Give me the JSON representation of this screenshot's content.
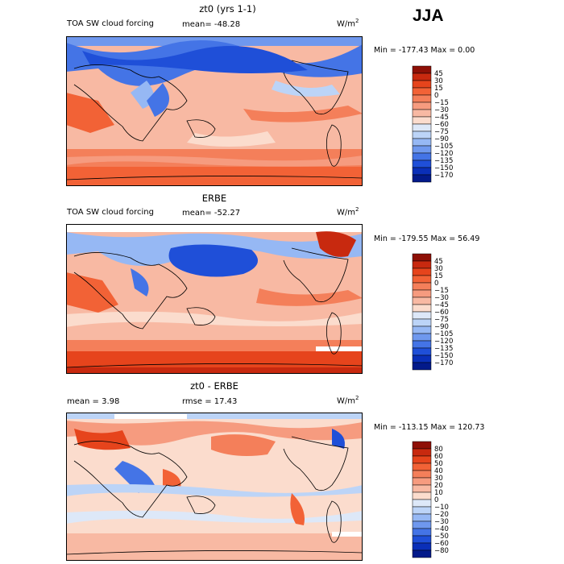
{
  "season": "JJA",
  "panels": [
    {
      "title": "zt0 (yrs 1-1)",
      "field": "TOA SW cloud forcing",
      "mean_text": "mean= -48.28",
      "rmse_text": "",
      "units": "W/m",
      "units_exp": "2",
      "min_max_text": "Min = -177.43 Max =    0.00",
      "colorbar_labels": [
        "45",
        "30",
        "15",
        "0",
        "-15",
        "-30",
        "-45",
        "-60",
        "-75",
        "-90",
        "-105",
        "-120",
        "-135",
        "-150",
        "-170"
      ],
      "colorbar_colors": [
        "#8e1006",
        "#c8290f",
        "#e6441c",
        "#f26236",
        "#f47f5a",
        "#f69b7f",
        "#f8b9a3",
        "#fbdccd",
        "#dde8f8",
        "#bcd4f7",
        "#96b8f4",
        "#6f98ee",
        "#4474e6",
        "#1f4fd8",
        "#0a2fb8",
        "#031a8a"
      ]
    },
    {
      "title": "ERBE",
      "field": "TOA SW cloud forcing",
      "mean_text": "mean= -52.27",
      "rmse_text": "",
      "units": "W/m",
      "units_exp": "2",
      "min_max_text": "Min = -179.55 Max =  56.49",
      "colorbar_labels": [
        "45",
        "30",
        "15",
        "0",
        "-15",
        "-30",
        "-45",
        "-60",
        "-75",
        "-90",
        "-105",
        "-120",
        "-135",
        "-150",
        "-170"
      ],
      "colorbar_colors": [
        "#8e1006",
        "#c8290f",
        "#e6441c",
        "#f26236",
        "#f47f5a",
        "#f69b7f",
        "#f8b9a3",
        "#fbdccd",
        "#dde8f8",
        "#bcd4f7",
        "#96b8f4",
        "#6f98ee",
        "#4474e6",
        "#1f4fd8",
        "#0a2fb8",
        "#031a8a"
      ]
    },
    {
      "title": "zt0 - ERBE",
      "field": "",
      "mean_text": "mean =    3.98",
      "rmse_text": "rmse =   17.43",
      "units": "W/m",
      "units_exp": "2",
      "min_max_text": "Min = -113.15 Max = 120.73",
      "colorbar_labels": [
        "80",
        "60",
        "50",
        "40",
        "30",
        "20",
        "10",
        "0",
        "-10",
        "-20",
        "-30",
        "-40",
        "-50",
        "-60",
        "-80"
      ],
      "colorbar_colors": [
        "#8e1006",
        "#c8290f",
        "#e6441c",
        "#f26236",
        "#f47f5a",
        "#f69b7f",
        "#f8b9a3",
        "#fbdccd",
        "#dde8f8",
        "#bcd4f7",
        "#96b8f4",
        "#6f98ee",
        "#4474e6",
        "#1f4fd8",
        "#0a2fb8",
        "#031a8a"
      ]
    }
  ],
  "chart_data": [
    {
      "type": "heatmap",
      "title": "zt0 (yrs 1-1)",
      "subtitle": "TOA SW cloud forcing",
      "mean": -48.28,
      "min": -177.43,
      "max": 0.0,
      "units": "W/m2",
      "color_levels": [
        45,
        30,
        15,
        0,
        -15,
        -30,
        -45,
        -60,
        -75,
        -90,
        -105,
        -120,
        -135,
        -150,
        -170
      ]
    },
    {
      "type": "heatmap",
      "title": "ERBE",
      "subtitle": "TOA SW cloud forcing",
      "mean": -52.27,
      "min": -179.55,
      "max": 56.49,
      "units": "W/m2",
      "color_levels": [
        45,
        30,
        15,
        0,
        -15,
        -30,
        -45,
        -60,
        -75,
        -90,
        -105,
        -120,
        -135,
        -150,
        -170
      ]
    },
    {
      "type": "heatmap",
      "title": "zt0 - ERBE",
      "mean": 3.98,
      "rmse": 17.43,
      "min": -113.15,
      "max": 120.73,
      "units": "W/m2",
      "color_levels": [
        80,
        60,
        50,
        40,
        30,
        20,
        10,
        0,
        -10,
        -20,
        -30,
        -40,
        -50,
        -60,
        -80
      ]
    }
  ]
}
